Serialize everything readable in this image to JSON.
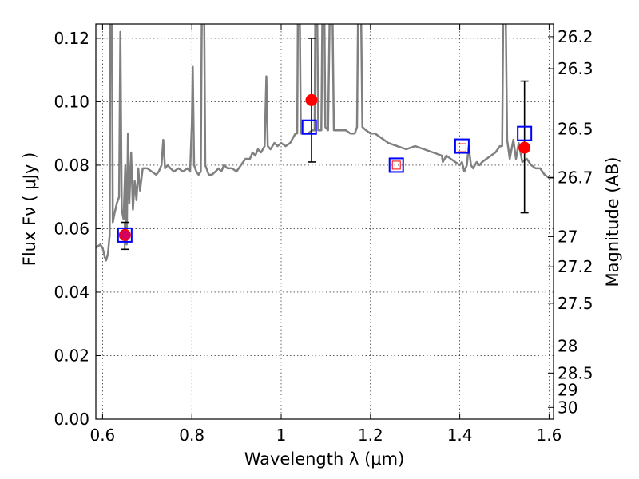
{
  "chart_data": {
    "type": "scatter",
    "xlabel": "Wavelength  λ (μm)",
    "ylabel": "Flux  Fν  ( μJy )",
    "ylabel_right": "Magnitude (AB)",
    "xlim": [
      0.585,
      1.61
    ],
    "ylim": [
      0.0,
      0.1245
    ],
    "grid": true,
    "x_ticks": [
      0.6,
      0.8,
      1.0,
      1.2,
      1.4,
      1.6
    ],
    "x_tick_labels": [
      "0.6",
      "0.8",
      "1",
      "1.2",
      "1.4",
      "1.6"
    ],
    "y_ticks": [
      0.0,
      0.02,
      0.04,
      0.06,
      0.08,
      0.1,
      0.12
    ],
    "y_tick_labels": [
      "0.00",
      "0.02",
      "0.04",
      "0.06",
      "0.08",
      "0.10",
      "0.12"
    ],
    "mag_ticks": [
      {
        "label": "26.2",
        "flux": 0.1205
      },
      {
        "label": "26.3",
        "flux": 0.1104
      },
      {
        "label": "26.5",
        "flux": 0.0914
      },
      {
        "label": "26.7",
        "flux": 0.0761
      },
      {
        "label": "27",
        "flux": 0.0575
      },
      {
        "label": "27.2",
        "flux": 0.048
      },
      {
        "label": "27.5",
        "flux": 0.0365
      },
      {
        "label": "28",
        "flux": 0.023
      },
      {
        "label": "28.5",
        "flux": 0.0145
      },
      {
        "label": "29",
        "flux": 0.0092
      },
      {
        "label": "30",
        "flux": 0.0037
      }
    ],
    "series": [
      {
        "kind": "line",
        "color": "#808080",
        "points": [
          [
            0.585,
            0.054
          ],
          [
            0.595,
            0.055
          ],
          [
            0.6,
            0.054
          ],
          [
            0.605,
            0.051
          ],
          [
            0.608,
            0.05
          ],
          [
            0.612,
            0.052
          ],
          [
            0.616,
            0.058
          ],
          [
            0.618,
            0.14
          ],
          [
            0.621,
            0.14
          ],
          [
            0.623,
            0.062
          ],
          [
            0.627,
            0.065
          ],
          [
            0.632,
            0.068
          ],
          [
            0.637,
            0.07
          ],
          [
            0.64,
            0.122
          ],
          [
            0.643,
            0.066
          ],
          [
            0.647,
            0.063
          ],
          [
            0.651,
            0.08
          ],
          [
            0.654,
            0.055
          ],
          [
            0.657,
            0.09
          ],
          [
            0.66,
            0.068
          ],
          [
            0.664,
            0.084
          ],
          [
            0.668,
            0.066
          ],
          [
            0.672,
            0.075
          ],
          [
            0.676,
            0.069
          ],
          [
            0.68,
            0.079
          ],
          [
            0.684,
            0.072
          ],
          [
            0.69,
            0.079
          ],
          [
            0.7,
            0.079
          ],
          [
            0.71,
            0.078
          ],
          [
            0.72,
            0.077
          ],
          [
            0.726,
            0.078
          ],
          [
            0.732,
            0.08
          ],
          [
            0.736,
            0.088
          ],
          [
            0.74,
            0.079
          ],
          [
            0.746,
            0.08
          ],
          [
            0.752,
            0.079
          ],
          [
            0.76,
            0.078
          ],
          [
            0.77,
            0.079
          ],
          [
            0.78,
            0.078
          ],
          [
            0.79,
            0.079
          ],
          [
            0.796,
            0.078
          ],
          [
            0.8,
            0.093
          ],
          [
            0.802,
            0.111
          ],
          [
            0.805,
            0.08
          ],
          [
            0.81,
            0.078
          ],
          [
            0.815,
            0.077
          ],
          [
            0.82,
            0.078
          ],
          [
            0.823,
            0.14
          ],
          [
            0.827,
            0.14
          ],
          [
            0.83,
            0.08
          ],
          [
            0.838,
            0.077
          ],
          [
            0.845,
            0.077
          ],
          [
            0.853,
            0.078
          ],
          [
            0.86,
            0.079
          ],
          [
            0.866,
            0.078
          ],
          [
            0.872,
            0.08
          ],
          [
            0.88,
            0.079
          ],
          [
            0.89,
            0.079
          ],
          [
            0.9,
            0.078
          ],
          [
            0.91,
            0.08
          ],
          [
            0.92,
            0.082
          ],
          [
            0.93,
            0.082
          ],
          [
            0.936,
            0.084
          ],
          [
            0.942,
            0.083
          ],
          [
            0.948,
            0.085
          ],
          [
            0.955,
            0.084
          ],
          [
            0.963,
            0.086
          ],
          [
            0.967,
            0.108
          ],
          [
            0.97,
            0.086
          ],
          [
            0.976,
            0.085
          ],
          [
            0.985,
            0.087
          ],
          [
            0.992,
            0.086
          ],
          [
            1.0,
            0.087
          ],
          [
            1.01,
            0.086
          ],
          [
            1.02,
            0.087
          ],
          [
            1.032,
            0.09
          ],
          [
            1.036,
            0.09
          ],
          [
            1.038,
            0.14
          ],
          [
            1.041,
            0.14
          ],
          [
            1.044,
            0.09
          ],
          [
            1.05,
            0.09
          ],
          [
            1.06,
            0.09
          ],
          [
            1.07,
            0.091
          ],
          [
            1.075,
            0.091
          ],
          [
            1.077,
            0.14
          ],
          [
            1.08,
            0.14
          ],
          [
            1.083,
            0.091
          ],
          [
            1.09,
            0.091
          ],
          [
            1.093,
            0.14
          ],
          [
            1.096,
            0.14
          ],
          [
            1.099,
            0.092
          ],
          [
            1.105,
            0.091
          ],
          [
            1.11,
            0.14
          ],
          [
            1.114,
            0.14
          ],
          [
            1.118,
            0.091
          ],
          [
            1.125,
            0.091
          ],
          [
            1.135,
            0.091
          ],
          [
            1.145,
            0.091
          ],
          [
            1.155,
            0.09
          ],
          [
            1.165,
            0.09
          ],
          [
            1.17,
            0.092
          ],
          [
            1.173,
            0.14
          ],
          [
            1.178,
            0.14
          ],
          [
            1.182,
            0.092
          ],
          [
            1.19,
            0.091
          ],
          [
            1.2,
            0.09
          ],
          [
            1.21,
            0.09
          ],
          [
            1.22,
            0.089
          ],
          [
            1.24,
            0.087
          ],
          [
            1.26,
            0.086
          ],
          [
            1.28,
            0.085
          ],
          [
            1.3,
            0.086
          ],
          [
            1.32,
            0.085
          ],
          [
            1.34,
            0.084
          ],
          [
            1.36,
            0.083
          ],
          [
            1.362,
            0.081
          ],
          [
            1.37,
            0.083
          ],
          [
            1.38,
            0.082
          ],
          [
            1.39,
            0.081
          ],
          [
            1.4,
            0.08
          ],
          [
            1.405,
            0.081
          ],
          [
            1.41,
            0.078
          ],
          [
            1.416,
            0.08
          ],
          [
            1.42,
            0.086
          ],
          [
            1.425,
            0.08
          ],
          [
            1.43,
            0.079
          ],
          [
            1.438,
            0.081
          ],
          [
            1.444,
            0.08
          ],
          [
            1.45,
            0.081
          ],
          [
            1.46,
            0.082
          ],
          [
            1.47,
            0.083
          ],
          [
            1.48,
            0.084
          ],
          [
            1.49,
            0.086
          ],
          [
            1.495,
            0.086
          ],
          [
            1.498,
            0.14
          ],
          [
            1.502,
            0.14
          ],
          [
            1.506,
            0.088
          ],
          [
            1.512,
            0.082
          ],
          [
            1.52,
            0.088
          ],
          [
            1.526,
            0.082
          ],
          [
            1.532,
            0.087
          ],
          [
            1.54,
            0.081
          ],
          [
            1.55,
            0.082
          ],
          [
            1.56,
            0.08
          ],
          [
            1.57,
            0.079
          ],
          [
            1.58,
            0.079
          ],
          [
            1.59,
            0.077
          ],
          [
            1.6,
            0.076
          ],
          [
            1.61,
            0.076
          ]
        ]
      },
      {
        "kind": "points",
        "marker": "circle",
        "color": "#ff0000",
        "points": [
          {
            "x": 0.65,
            "y": 0.058,
            "yerr_low": 0.0535,
            "yerr_high": 0.062
          },
          {
            "x": 1.068,
            "y": 0.1005,
            "yerr_low": 0.081,
            "yerr_high": 0.12
          },
          {
            "x": 1.258,
            "y": 0.08
          },
          {
            "x": 1.405,
            "y": 0.0855
          },
          {
            "x": 1.545,
            "y": 0.0855,
            "yerr_low": 0.065,
            "yerr_high": 0.1065
          }
        ]
      },
      {
        "kind": "points",
        "marker": "square",
        "color": "#0000ff",
        "points": [
          {
            "x": 0.65,
            "y": 0.058
          },
          {
            "x": 1.063,
            "y": 0.092
          },
          {
            "x": 1.258,
            "y": 0.08
          },
          {
            "x": 1.405,
            "y": 0.086
          },
          {
            "x": 1.545,
            "y": 0.09
          }
        ]
      }
    ]
  }
}
